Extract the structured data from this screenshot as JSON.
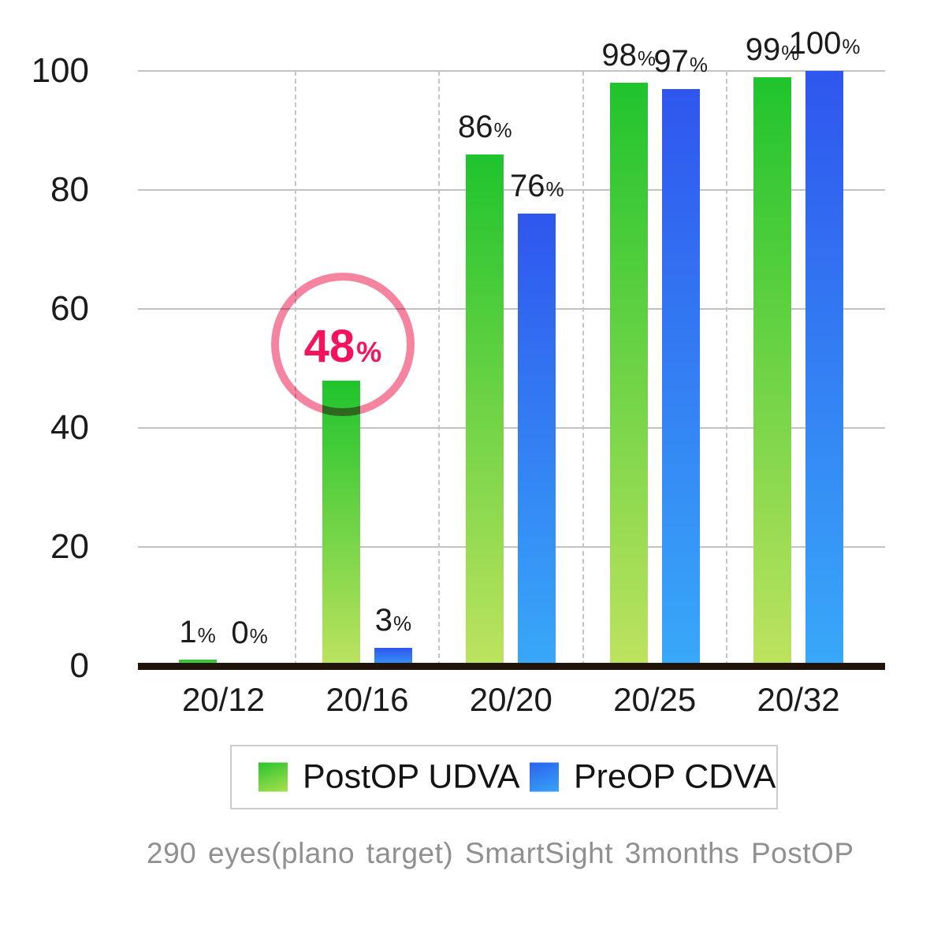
{
  "chart_data": {
    "type": "bar",
    "title": "",
    "categories": [
      "20/12",
      "20/16",
      "20/20",
      "20/25",
      "20/32"
    ],
    "series": [
      {
        "name": "PostOP UDVA",
        "values": [
          1,
          48,
          86,
          98,
          99
        ],
        "color_top": "#1fc42d",
        "color_bottom": "#bfe35f"
      },
      {
        "name": "PreOP CDVA",
        "values": [
          0,
          3,
          76,
          97,
          100
        ],
        "color_top": "#2f56ee",
        "color_bottom": "#38a9f8"
      }
    ],
    "value_label_suffix": "%",
    "yticks": [
      0,
      20,
      40,
      60,
      80,
      100
    ],
    "ylim": [
      0,
      100
    ],
    "xlabel": "",
    "ylabel": "",
    "grid": {
      "horizontal": "solid",
      "vertical": "dashed-category-separators"
    },
    "legend_position": "bottom",
    "highlight": {
      "series": "PostOP UDVA",
      "category": "20/16",
      "value": 48,
      "label": "48%",
      "shape": "circle-outline",
      "ring_color": "#f4849f",
      "text_color": "#f4135c"
    }
  },
  "legend": {
    "items": [
      {
        "label": "PostOP UDVA",
        "swatch": "green-gradient"
      },
      {
        "label": "PreOP CDVA",
        "swatch": "blue-gradient"
      }
    ]
  },
  "caption": "290 eyes(plano target) SmartSight 3months PostOP",
  "colors": {
    "background": "#ffffff",
    "grid": "#c2c2c2",
    "dashed_grid": "#c6c6c6",
    "axis_baseline": "#1f130a",
    "tick_text": "#1b1b1b",
    "value_text": "#1b1b1b",
    "caption_text": "#909090",
    "legend_border": "#cccccc"
  }
}
